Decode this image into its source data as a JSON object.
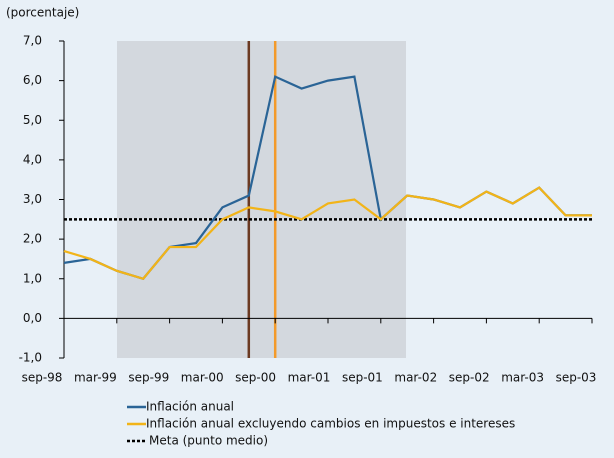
{
  "chart_data": {
    "type": "line",
    "ylabel": "(porcentaje)",
    "categories": [
      "sep-98",
      null,
      "mar-99",
      null,
      "sep-99",
      null,
      "mar-00",
      null,
      "sep-00",
      null,
      "mar-01",
      null,
      "sep-01",
      null,
      "mar-02",
      null,
      "sep-02",
      null,
      "mar-03",
      null,
      "sep-03"
    ],
    "series": [
      {
        "name": "Inflación anual",
        "color": "#2a6496",
        "values": [
          1.4,
          1.5,
          1.2,
          1.0,
          1.8,
          1.9,
          2.8,
          3.1,
          6.1,
          5.8,
          6.0,
          6.1,
          2.5,
          3.1,
          3.0,
          2.8,
          3.2,
          2.9,
          3.3,
          2.6,
          2.6
        ]
      },
      {
        "name": "Inflación anual excluyendo cambios en impuestos e intereses",
        "color": "#f2b418",
        "values": [
          1.7,
          1.5,
          1.2,
          1.0,
          1.8,
          1.8,
          2.5,
          2.8,
          2.7,
          2.5,
          2.9,
          3.0,
          2.5,
          3.1,
          3.0,
          2.8,
          3.2,
          2.9,
          3.3,
          2.6,
          2.6
        ]
      }
    ],
    "reference_line": {
      "name": "Meta (punto medio)",
      "value": 2.5,
      "color": "#000000"
    },
    "ylim": [
      -1,
      7
    ],
    "yticks": [
      {
        "value": -1,
        "label": "-1,0"
      },
      {
        "value": 0,
        "label": "0,0"
      },
      {
        "value": 1,
        "label": "1,0"
      },
      {
        "value": 2,
        "label": "2,0"
      },
      {
        "value": 3,
        "label": "3,0"
      },
      {
        "value": 4,
        "label": "4,0"
      },
      {
        "value": 5,
        "label": "5,0"
      },
      {
        "value": 6,
        "label": "6,0"
      },
      {
        "value": 7,
        "label": "7,0"
      }
    ]
  }
}
